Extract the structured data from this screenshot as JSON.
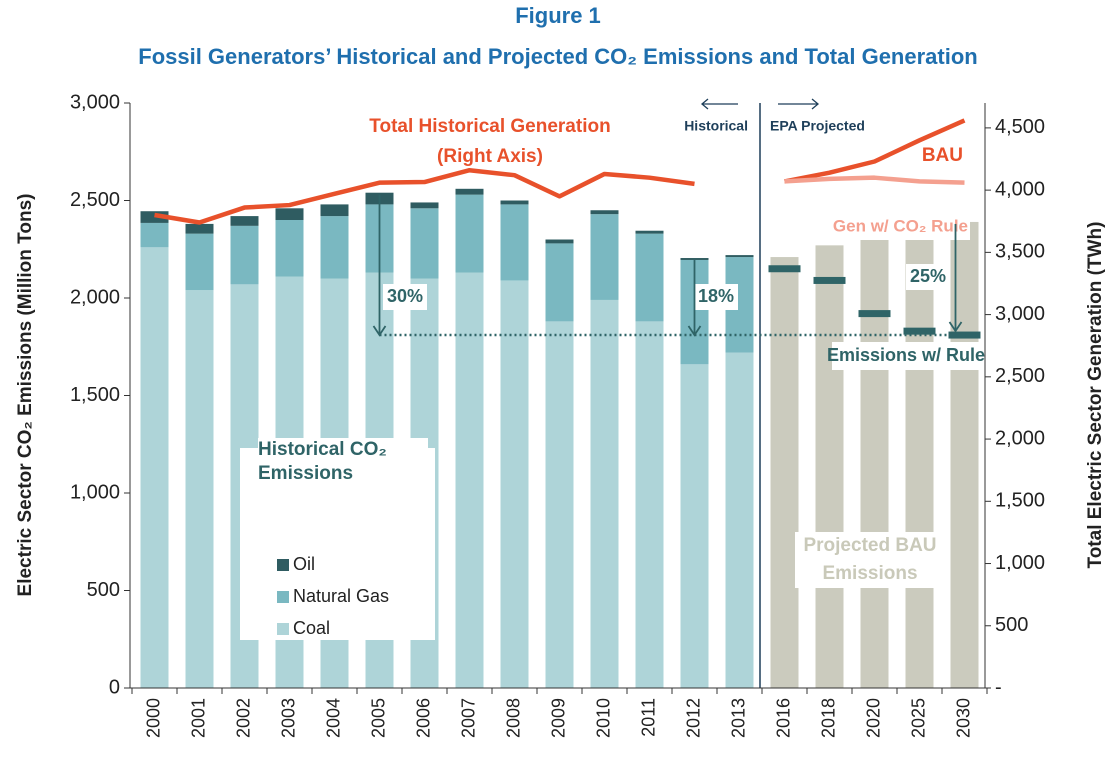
{
  "chart_data": {
    "type": "bar",
    "title": "Figure 1",
    "subtitle": "Fossil Generators’ Historical and Projected CO₂ Emissions and Total Generation",
    "y_label": "Electric Sector CO₂ Emissions (Million Tons)",
    "y2_label": "Total Electric Sector Generation (TWh)",
    "categories": [
      "2000",
      "2001",
      "2002",
      "2003",
      "2004",
      "2005",
      "2006",
      "2007",
      "2008",
      "2009",
      "2010",
      "2011",
      "2012",
      "2013",
      "2016",
      "2018",
      "2020",
      "2025",
      "2030"
    ],
    "ylim": [
      0,
      3000
    ],
    "yticks": [
      0,
      500,
      {
        "value": 1000,
        "label": "1,000"
      },
      {
        "value": 1500,
        "label": "1,500"
      },
      {
        "value": 2000,
        "label": "2,000"
      },
      {
        "value": 2500,
        "label": "2,500"
      },
      {
        "value": 3000,
        "label": "3,000"
      }
    ],
    "y2lim": [
      0,
      4700
    ],
    "y2ticks": [
      {
        "value": 0,
        "label": "-"
      },
      500,
      {
        "value": 1000,
        "label": "1,000"
      },
      {
        "value": 1500,
        "label": "1,500"
      },
      {
        "value": 2000,
        "label": "2,000"
      },
      {
        "value": 2500,
        "label": "2,500"
      },
      {
        "value": 3000,
        "label": "3,000"
      },
      {
        "value": 3500,
        "label": "3,500"
      },
      {
        "value": 4000,
        "label": "4,000"
      },
      {
        "value": 4500,
        "label": "4,500"
      }
    ],
    "grid": false,
    "legend_title": "Historical CO₂ Emissions",
    "series": [
      {
        "name": "Coal",
        "kind": "bar",
        "stacked": true,
        "color": "#aed4d8",
        "values": [
          2260,
          2040,
          2070,
          2110,
          2100,
          2130,
          2100,
          2130,
          2090,
          1880,
          1990,
          1880,
          1660,
          1720,
          null,
          null,
          null,
          null,
          null
        ]
      },
      {
        "name": "Natural Gas",
        "kind": "bar",
        "stacked": true,
        "color": "#7ab8c1",
        "values": [
          125,
          290,
          300,
          290,
          320,
          350,
          360,
          400,
          390,
          400,
          440,
          450,
          535,
          490,
          null,
          null,
          null,
          null,
          null
        ]
      },
      {
        "name": "Oil",
        "kind": "bar",
        "stacked": true,
        "color": "#2f5c61",
        "values": [
          60,
          50,
          50,
          60,
          60,
          60,
          30,
          30,
          20,
          20,
          20,
          15,
          10,
          10,
          null,
          null,
          null,
          null,
          null
        ]
      },
      {
        "name": "Projected BAU Emissions",
        "kind": "bar",
        "stacked": false,
        "color": "#cbcbbe",
        "values": [
          null,
          null,
          null,
          null,
          null,
          null,
          null,
          null,
          null,
          null,
          null,
          null,
          null,
          null,
          2210,
          2270,
          2300,
          2370,
          2390
        ]
      },
      {
        "name": "Emissions w/ Rule",
        "kind": "dash",
        "color": "#2f6467",
        "values": [
          null,
          null,
          null,
          null,
          null,
          null,
          null,
          null,
          null,
          null,
          null,
          null,
          null,
          null,
          2150,
          2090,
          1920,
          1830,
          1810
        ]
      },
      {
        "name": "Total Historical Generation",
        "kind": "line",
        "axis": "y2",
        "color": "#e8512b",
        "values": [
          3800,
          3740,
          3860,
          3880,
          3970,
          4060,
          4065,
          4160,
          4120,
          3950,
          4130,
          4100,
          4050,
          null,
          null,
          null,
          null,
          null,
          null
        ]
      },
      {
        "name": "BAU",
        "kind": "line",
        "axis": "y2",
        "color": "#e8512b",
        "values": [
          null,
          null,
          null,
          null,
          null,
          null,
          null,
          null,
          null,
          null,
          null,
          null,
          null,
          null,
          4070,
          4140,
          4230,
          4400,
          4560
        ]
      },
      {
        "name": "Gen w/ CO₂ Rule",
        "kind": "line",
        "axis": "y2",
        "color": "#f4a08f",
        "values": [
          null,
          null,
          null,
          null,
          null,
          null,
          null,
          null,
          null,
          null,
          null,
          null,
          null,
          null,
          4070,
          4090,
          4100,
          4070,
          4060
        ]
      }
    ],
    "annotations": [
      "(Right Axis)",
      "Historical",
      "EPA Projected",
      "30%",
      "18%",
      "25%"
    ]
  }
}
